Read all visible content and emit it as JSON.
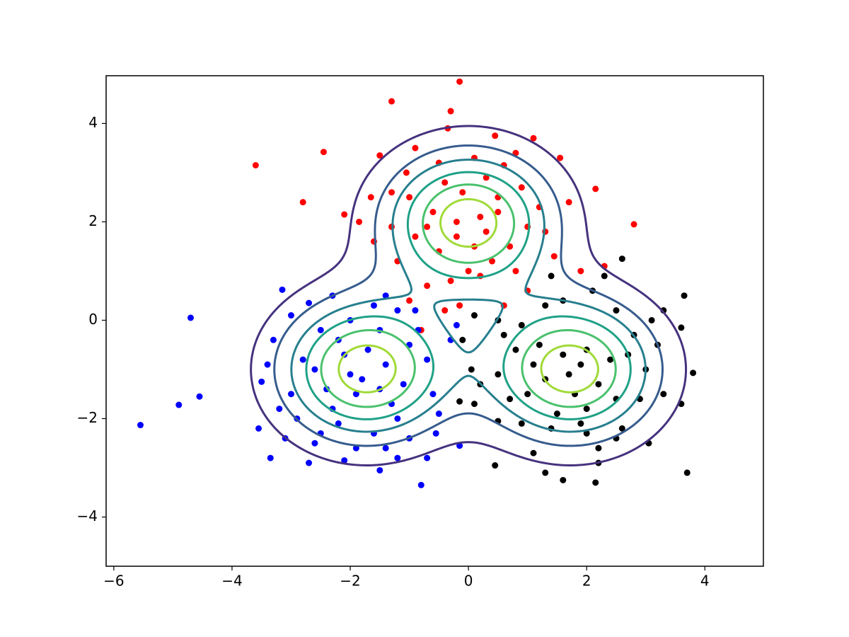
{
  "chart_data": {
    "type": "scatter",
    "xlim": [
      -6.13,
      4.99
    ],
    "ylim": [
      -5.0,
      4.97
    ],
    "xticks": [
      {
        "value": -6,
        "label": "−6"
      },
      {
        "value": -4,
        "label": "−4"
      },
      {
        "value": -2,
        "label": "−2"
      },
      0,
      2,
      4
    ],
    "yticks": [
      {
        "value": -4,
        "label": "−4"
      },
      {
        "value": -2,
        "label": "−2"
      },
      0,
      2,
      4
    ],
    "series": [
      {
        "color": "#ff0000",
        "x": [
          -0.15,
          -1.3,
          -3.6,
          -0.3,
          -2.8,
          -2.45,
          -0.35,
          0.45,
          1.1,
          1.55,
          2.15,
          2.8,
          2.3,
          1.9,
          1.45,
          -1.5,
          -1.05,
          -1.65,
          -1.85,
          -2.1,
          -1.3,
          -0.9,
          -1.0,
          -0.5,
          0.1,
          0.6,
          0.9,
          1.2,
          1.0,
          0.7,
          0.4,
          0,
          -0.3,
          -0.7,
          -0.5,
          -0.2,
          0.2,
          0.5,
          -0.1,
          -0.6,
          0.3,
          -0.2,
          0.1,
          0.8,
          -1.0,
          -0.4,
          -0.15,
          1.0,
          -1.2,
          -1.6,
          1.7,
          0.6,
          -0.8,
          0.2,
          -0.4,
          0.3,
          -1.3,
          1.3,
          0.5,
          -0.7,
          -0.9,
          0.8
        ],
        "y": [
          4.85,
          4.45,
          3.15,
          4.25,
          2.4,
          3.42,
          3.9,
          3.75,
          3.7,
          3.3,
          2.67,
          1.95,
          1.1,
          1.0,
          1.3,
          3.35,
          3.0,
          2.5,
          2.0,
          2.15,
          1.9,
          1.7,
          2.5,
          3.2,
          3.3,
          3.15,
          2.7,
          2.3,
          1.9,
          1.5,
          1.2,
          1.0,
          0.8,
          0.7,
          1.4,
          1.7,
          2.1,
          2.5,
          2.6,
          2.2,
          1.8,
          2.0,
          1.5,
          1.0,
          0.4,
          0.2,
          0.3,
          0.6,
          1.2,
          1.6,
          2.4,
          0.3,
          -0.2,
          0.9,
          2.8,
          2.9,
          2.6,
          1.8,
          2.2,
          1.9,
          3.5,
          3.4
        ]
      },
      {
        "color": "#0000ff",
        "x": [
          -5.55,
          -4.9,
          -4.55,
          -4.7,
          -3.15,
          -3.35,
          -3.55,
          -3.5,
          -3.3,
          -3.0,
          -2.7,
          -2.3,
          -1.4,
          -1.2,
          -0.85,
          -0.7,
          -0.6,
          -0.55,
          -0.7,
          -0.8,
          -0.15,
          -1.5,
          -2.1,
          -2.6,
          -2.9,
          -3.0,
          -2.8,
          -2.5,
          -2.0,
          -1.5,
          -1.0,
          -1.1,
          -1.2,
          -1.6,
          -2.2,
          -2.4,
          -2.1,
          -1.7,
          -1.4,
          -1.5,
          -1.9,
          -2.0,
          -1.8,
          -1.3,
          -2.3,
          -2.6,
          -1.0,
          -1.9,
          -2.7,
          -3.2,
          -3.4,
          -1.6,
          -0.3,
          -0.2,
          -0.9,
          -2.2,
          -1.2,
          -3.1,
          -1.4,
          -2.5,
          -0.5
        ],
        "y": [
          -2.13,
          -1.72,
          -1.55,
          0.05,
          0.62,
          -2.8,
          -2.2,
          -1.25,
          -0.4,
          0.1,
          0.35,
          0.5,
          0.5,
          0.2,
          -0.2,
          -0.8,
          -1.5,
          -2.3,
          -2.8,
          -3.35,
          -2.55,
          -3.05,
          -2.85,
          -2.5,
          -2.0,
          -1.5,
          -0.8,
          -0.2,
          0.0,
          -0.2,
          -0.5,
          -1.3,
          -2.0,
          -2.3,
          -2.1,
          -1.4,
          -0.7,
          -0.6,
          -0.9,
          -1.4,
          -1.5,
          -1.1,
          -1.2,
          -1.7,
          -1.8,
          -1.0,
          -2.4,
          -2.6,
          -2.9,
          -1.8,
          -0.9,
          0.3,
          -0.4,
          -0.1,
          0.2,
          -0.4,
          -2.8,
          -2.4,
          -2.6,
          -2.3,
          -1.9
        ]
      },
      {
        "color": "#000000",
        "x": [
          3.7,
          3.65,
          3.8,
          3.6,
          3.3,
          3.2,
          3.6,
          3.05,
          2.2,
          2.15,
          1.6,
          1.3,
          0.45,
          0.5,
          0.1,
          0.05,
          -0.1,
          0.1,
          0.5,
          0.9,
          1.3,
          1.6,
          2.1,
          2.3,
          2.6,
          2.5,
          2.8,
          3.0,
          2.9,
          2.6,
          2.0,
          1.4,
          0.9,
          0.7,
          0.5,
          0.8,
          1.2,
          1.6,
          2.0,
          2.4,
          2.2,
          1.8,
          1.3,
          1.0,
          1.5,
          2.0,
          2.5,
          1.7,
          1.9,
          1.1,
          2.7,
          3.3,
          2.2,
          1.1,
          0.2,
          -0.15,
          3.1,
          1.4,
          1.9,
          2.5,
          0.6
        ],
        "y": [
          -3.1,
          0.5,
          -1.07,
          -0.15,
          0.2,
          -0.5,
          -1.7,
          -2.5,
          -2.9,
          -3.3,
          -3.25,
          -3.1,
          -2.95,
          -2.05,
          -1.7,
          -1.0,
          -0.4,
          0.1,
          0.0,
          -0.1,
          0.3,
          0.4,
          0.6,
          0.9,
          1.25,
          0.2,
          -0.3,
          -1.0,
          -1.6,
          -2.2,
          -2.3,
          -2.2,
          -2.1,
          -1.6,
          -1.1,
          -0.6,
          -0.5,
          -0.7,
          -0.6,
          -0.8,
          -1.3,
          -1.5,
          -1.2,
          -1.5,
          -1.9,
          -1.8,
          -1.6,
          -1.1,
          -0.9,
          -0.9,
          -0.7,
          -1.5,
          -2.6,
          -2.7,
          -1.3,
          -1.65,
          0.0,
          0.9,
          -2.1,
          -2.4,
          -0.3
        ]
      }
    ],
    "contours": {
      "centers": {
        "x": [
          0,
          -1.732,
          1.732
        ],
        "y": [
          2,
          -1,
          -1
        ]
      },
      "sigma": 1,
      "levels": [
        0.15,
        0.3,
        0.45,
        0.6,
        0.75,
        0.9
      ],
      "colors": [
        "#46327e",
        "#365c8d",
        "#277f8e",
        "#1fa187",
        "#4ac16d",
        "#a0da39"
      ]
    }
  }
}
